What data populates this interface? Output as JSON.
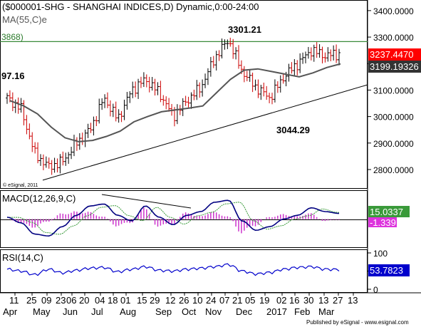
{
  "header": {
    "title": "($000001-SHG - SHANGHAI INDICES,D) Dynamic,0:00-24:00",
    "ma_label": "MA(55,C)e",
    "hline_label": "3868)",
    "left_value": "97.16",
    "copyright": "© eSignal, 2011",
    "published": "Published by eSignal - www.esignal.com"
  },
  "colors": {
    "up_bar": "#000000",
    "down_bar": "#cc0000",
    "ma_line": "#555555",
    "trend_line": "#000000",
    "hline": "#3a8a3a",
    "macd_line": "#000080",
    "signal_line": "#3a9a3a",
    "histogram": "#cc33cc",
    "rsi_line": "#0000cc",
    "last_price_bg": "#ff0000",
    "ma_price_bg": "#333333",
    "macd_badge_bg": "#3a9a3a",
    "signal_badge_bg": "#dd33dd",
    "rsi_badge_bg": "#0000cc"
  },
  "chart_data": [
    {
      "type": "candlestick",
      "title": "($000001-SHG - SHANGHAI INDICES,D) Dynamic,0:00-24:00",
      "ylim": [
        2730,
        3440
      ],
      "y_ticks": [
        "3400.0000",
        "3300.0000",
        "3200.0000",
        "3100.0000",
        "3000.0000",
        "2900.0000",
        "2800.0000"
      ],
      "x_day_labels": [
        "11",
        "25",
        "09",
        "23",
        "06",
        "20",
        "04",
        "18",
        "01",
        "15",
        "29",
        "12",
        "26",
        "10",
        "24",
        "07",
        "21",
        "05",
        "19",
        "02",
        "16",
        "30",
        "13",
        "27",
        "13"
      ],
      "x_month_labels": [
        "Apr",
        "May",
        "Jun",
        "Jul",
        "Aug",
        "Sep",
        "Oct",
        "Nov",
        "Dec",
        "2017",
        "Feb",
        "Mar"
      ],
      "annotations": [
        "3301.21",
        "3044.29"
      ],
      "last_price": "3237.4470",
      "ma_value": "3199.19326",
      "series": [
        {
          "name": "MA(55,C)e",
          "values": [
            3060,
            3040,
            3010,
            2960,
            2920,
            2905,
            2910,
            2925,
            2945,
            2980,
            3000,
            3018,
            3025,
            3032,
            3040,
            3090,
            3140,
            3175,
            3180,
            3170,
            3160,
            3150,
            3165,
            3185,
            3199
          ]
        }
      ],
      "close_path": [
        3070,
        3030,
        2860,
        2810,
        2830,
        2900,
        2950,
        3070,
        2990,
        3100,
        3140,
        3090,
        3000,
        3060,
        3110,
        3220,
        3290,
        3170,
        3110,
        3070,
        3150,
        3200,
        3250,
        3230,
        3237
      ]
    },
    {
      "type": "line",
      "title": "MACD(12,26,9,C)",
      "ylim": [
        -75,
        75
      ],
      "macd_value": "15.0337",
      "signal_value": "-1.339",
      "series": [
        {
          "name": "MACD",
          "values": [
            5,
            -10,
            -40,
            -45,
            -20,
            10,
            35,
            40,
            10,
            -5,
            35,
            5,
            -15,
            10,
            20,
            45,
            50,
            -5,
            -30,
            -20,
            0,
            10,
            30,
            20,
            15
          ]
        }
      ]
    },
    {
      "type": "line",
      "title": "RSI(14,C)",
      "ylim": [
        0,
        100
      ],
      "y_ticks": [
        "100",
        "50",
        "0"
      ],
      "rsi_value": "53.7823",
      "series": [
        {
          "name": "RSI",
          "values": [
            55,
            50,
            40,
            55,
            45,
            52,
            58,
            60,
            48,
            55,
            62,
            52,
            50,
            55,
            58,
            62,
            68,
            50,
            42,
            46,
            55,
            60,
            62,
            55,
            54
          ]
        }
      ]
    }
  ]
}
